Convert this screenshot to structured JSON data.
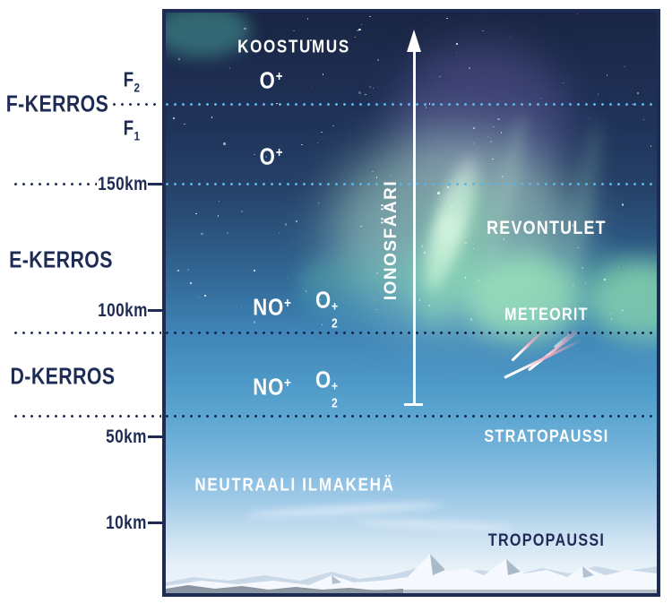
{
  "colors": {
    "navy": "#1e2c55",
    "dot_light_blue": "#5cb4e8",
    "white": "#ffffff",
    "aurora_green": "#96e6b4",
    "sky_top": "#192543",
    "sky_bottom": "#edf4fa"
  },
  "margin": {
    "f2": {
      "base": "F",
      "sub": "2"
    },
    "f1": {
      "base": "F",
      "sub": "1"
    },
    "layers": [
      {
        "label": "F-KERROS"
      },
      {
        "label": "E-KERROS"
      },
      {
        "label": "D-KERROS"
      }
    ],
    "altitudes": [
      {
        "label": "150km"
      },
      {
        "label": "100km"
      },
      {
        "label": "50km"
      },
      {
        "label": "10km"
      }
    ]
  },
  "diagram": {
    "composition_title": "KOOSTUMUS",
    "ionosphere_label": "IONOSFÄÄRI",
    "aurora_label": "REVONTULET",
    "meteors_label": "METEORIT",
    "stratopause_label": "STRATOPAUSSI",
    "neutral_atmosphere_label": "NEUTRAALI ILMAKEHÄ",
    "tropopause_label": "TROPOPAUSSI",
    "ions": {
      "o_plus": {
        "symbol": "O",
        "sup": "+"
      },
      "no_plus": {
        "symbol": "NO",
        "sup": "+"
      },
      "o2_plus": {
        "symbol": "O",
        "sub": "2",
        "sup": "+"
      }
    }
  }
}
